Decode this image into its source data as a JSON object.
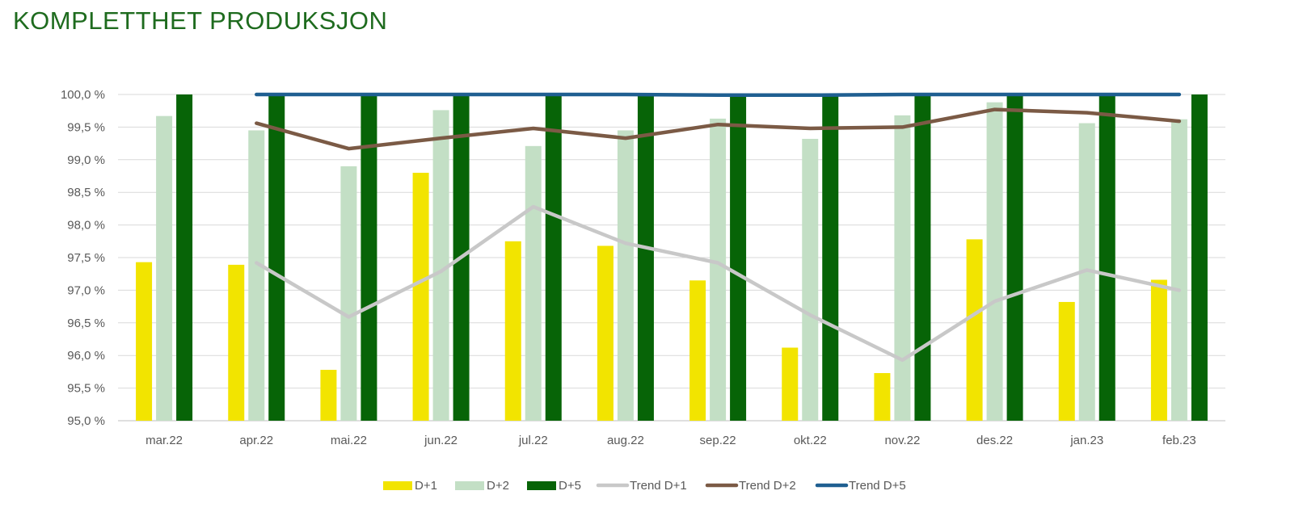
{
  "chart_data": {
    "type": "bar",
    "title": "KOMPLETTHET PRODUKSJON",
    "xlabel": "",
    "ylabel": "",
    "categories": [
      "mar.22",
      "apr.22",
      "mai.22",
      "jun.22",
      "jul.22",
      "aug.22",
      "sep.22",
      "okt.22",
      "nov.22",
      "des.22",
      "jan.23",
      "feb.23"
    ],
    "ylim": [
      95.0,
      100.0
    ],
    "yticks": [
      "95,0 %",
      "95,5 %",
      "96,0 %",
      "96,5 %",
      "97,0 %",
      "97,5 %",
      "98,0 %",
      "98,5 %",
      "99,0 %",
      "99,5 %",
      "100,0 %"
    ],
    "grid": true,
    "legend_position": "bottom",
    "series": [
      {
        "name": "D+1",
        "kind": "bar",
        "color": "#f2e400",
        "values": [
          97.43,
          97.39,
          95.78,
          98.8,
          97.75,
          97.68,
          97.15,
          96.12,
          95.73,
          97.78,
          96.82,
          97.16
        ]
      },
      {
        "name": "D+2",
        "kind": "bar",
        "color": "#c3dfc5",
        "values": [
          99.67,
          99.45,
          98.9,
          99.76,
          99.21,
          99.45,
          99.63,
          99.32,
          99.68,
          99.88,
          99.56,
          99.62
        ]
      },
      {
        "name": "D+5",
        "kind": "bar",
        "color": "#076407",
        "values": [
          100.0,
          100.0,
          100.0,
          100.0,
          100.0,
          100.0,
          100.0,
          100.0,
          100.0,
          100.0,
          100.0,
          100.0
        ]
      },
      {
        "name": "Trend D+1",
        "kind": "line",
        "color": "#c8c8c8",
        "values": [
          null,
          97.42,
          96.59,
          97.29,
          98.28,
          97.72,
          97.42,
          96.62,
          95.93,
          96.83,
          97.31,
          97.0
        ]
      },
      {
        "name": "Trend D+2",
        "kind": "line",
        "color": "#7b5a45",
        "values": [
          null,
          99.56,
          99.17,
          99.33,
          99.48,
          99.33,
          99.54,
          99.48,
          99.5,
          99.77,
          99.72,
          99.59
        ]
      },
      {
        "name": "Trend D+5",
        "kind": "line",
        "color": "#1f5f91",
        "values": [
          null,
          100.0,
          100.0,
          100.0,
          100.0,
          100.0,
          99.99,
          99.99,
          100.0,
          100.0,
          100.0,
          100.0
        ]
      }
    ]
  }
}
